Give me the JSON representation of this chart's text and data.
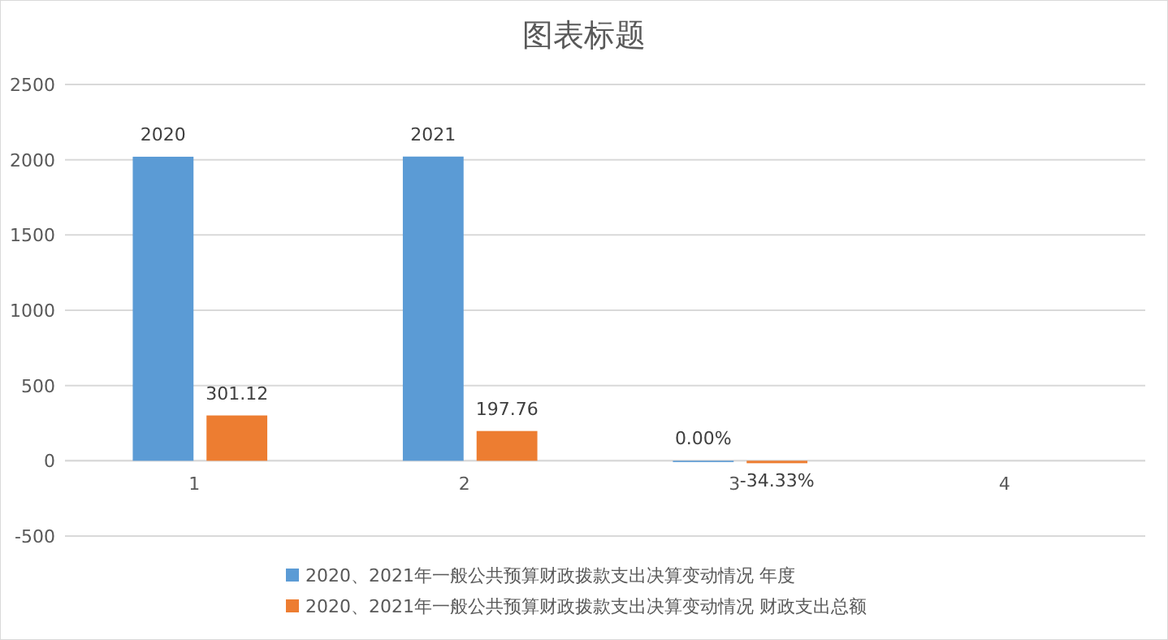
{
  "chart_data": {
    "type": "bar",
    "title": "图表标题",
    "categories": [
      "1",
      "2",
      "3",
      "4"
    ],
    "series": [
      {
        "name": "2020、2021年一般公共预算财政拨款支出决算变动情况 年度",
        "color": "#5b9bd5",
        "values": [
          2020,
          2021,
          0,
          null
        ],
        "value_labels": [
          "2020",
          "2021",
          "0.00%",
          null
        ]
      },
      {
        "name": "2020、2021年一般公共预算财政拨款支出决算变动情况 财政支出总额",
        "color": "#ed7d31",
        "values": [
          301.12,
          197.76,
          -0.3433,
          null
        ],
        "value_labels": [
          "301.12",
          "197.76",
          "-34.33%",
          null
        ]
      }
    ],
    "ylim": [
      -500,
      2500
    ],
    "yticks": [
      -500,
      0,
      500,
      1000,
      1500,
      2000,
      2500
    ],
    "grid": "y",
    "legend": "bottom"
  }
}
